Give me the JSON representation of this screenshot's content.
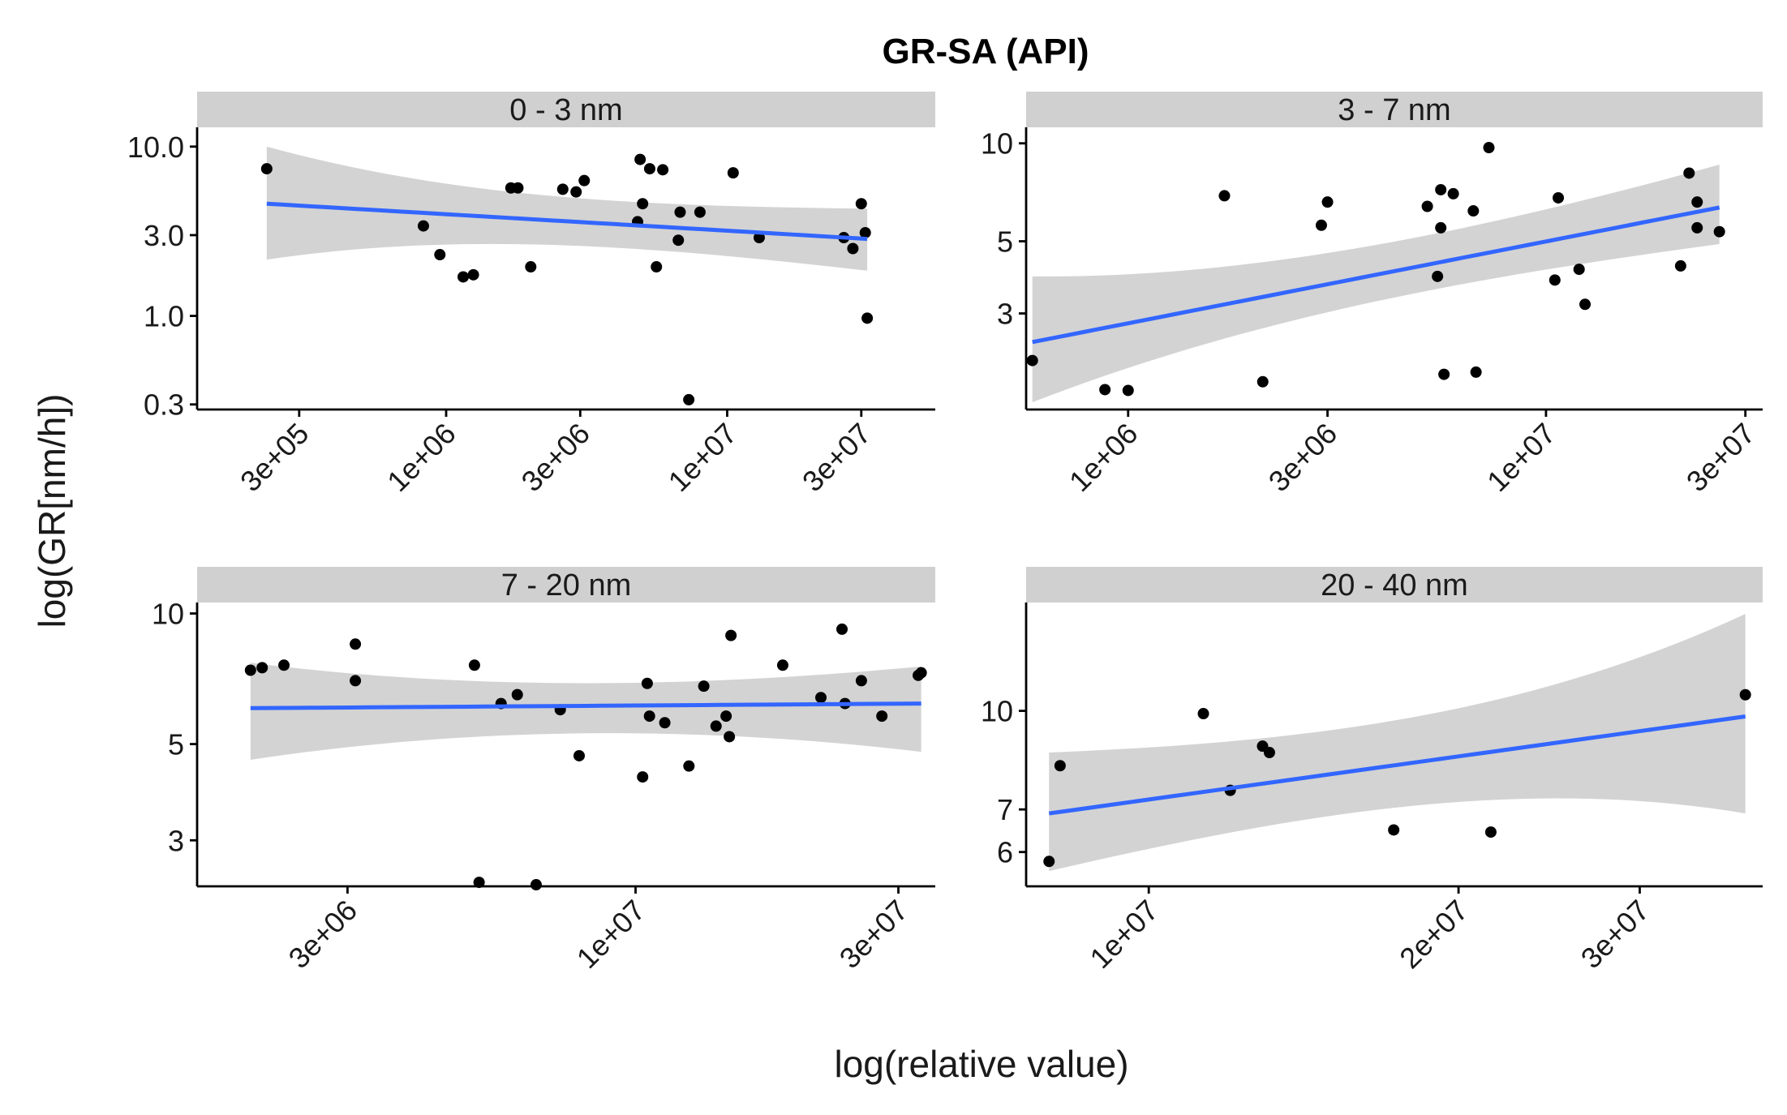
{
  "figure": {
    "title": "GR-SA (API)",
    "xlabel": "log(relative value)",
    "ylabel": "log(GR[nm/h])",
    "colors": {
      "point": "#000000",
      "fit_line": "#3366ff",
      "ribbon": "#d3d3d3",
      "strip": "#d0d0d0"
    }
  },
  "chart_data": [
    {
      "type": "scatter",
      "panel": "0 - 3 nm",
      "x_scale": "log",
      "y_scale": "log",
      "xlim": [
        130000,
        55000000
      ],
      "ylim": [
        0.28,
        13
      ],
      "xticks": [
        300000,
        1000000,
        3000000,
        10000000,
        30000000
      ],
      "xtick_labels": [
        "3e+05",
        "1e+06",
        "3e+06",
        "1e+07",
        "3e+07"
      ],
      "yticks": [
        0.3,
        1.0,
        3.0,
        10.0
      ],
      "ytick_labels": [
        "0.3",
        "1.0",
        "3.0",
        "10.0"
      ],
      "points": [
        [
          230000,
          7.4
        ],
        [
          830000,
          3.4
        ],
        [
          950000,
          2.3
        ],
        [
          1150000,
          1.7
        ],
        [
          1250000,
          1.75
        ],
        [
          1700000,
          5.7
        ],
        [
          1800000,
          5.7
        ],
        [
          2000000,
          1.95
        ],
        [
          2600000,
          5.6
        ],
        [
          2900000,
          5.4
        ],
        [
          3100000,
          6.3
        ],
        [
          4800000,
          3.6
        ],
        [
          4900000,
          8.4
        ],
        [
          5000000,
          4.6
        ],
        [
          5300000,
          7.4
        ],
        [
          5600000,
          1.95
        ],
        [
          5900000,
          7.3
        ],
        [
          6700000,
          2.8
        ],
        [
          6800000,
          4.1
        ],
        [
          7300000,
          0.32
        ],
        [
          8000000,
          4.1
        ],
        [
          10500000,
          7.0
        ],
        [
          13000000,
          2.9
        ],
        [
          26000000,
          2.9
        ],
        [
          28000000,
          2.5
        ],
        [
          30000000,
          4.6
        ],
        [
          31000000,
          3.1
        ],
        [
          31500000,
          0.97
        ]
      ],
      "fit": {
        "x": [
          230000,
          31500000
        ],
        "y": [
          4.6,
          2.85
        ],
        "ymin": [
          2.15,
          1.85
        ],
        "ymax": [
          10.0,
          4.3
        ]
      }
    },
    {
      "type": "scatter",
      "panel": "3 - 7 nm",
      "x_scale": "log",
      "y_scale": "log",
      "xlim": [
        570000,
        33000000
      ],
      "ylim": [
        1.52,
        11.2
      ],
      "xticks": [
        1000000,
        3000000,
        10000000,
        30000000
      ],
      "xtick_labels": [
        "1e+06",
        "3e+06",
        "1e+07",
        "3e+07"
      ],
      "yticks": [
        3,
        5,
        10
      ],
      "ytick_labels": [
        "3",
        "5",
        "10"
      ],
      "points": [
        [
          590000,
          2.15
        ],
        [
          880000,
          1.75
        ],
        [
          1000000,
          1.74
        ],
        [
          1700000,
          6.9
        ],
        [
          2100000,
          1.85
        ],
        [
          2900000,
          5.6
        ],
        [
          3000000,
          6.6
        ],
        [
          5200000,
          6.4
        ],
        [
          5500000,
          3.9
        ],
        [
          5600000,
          7.2
        ],
        [
          5600000,
          5.5
        ],
        [
          5700000,
          1.95
        ],
        [
          6000000,
          7.0
        ],
        [
          6700000,
          6.2
        ],
        [
          6800000,
          1.98
        ],
        [
          7300000,
          9.7
        ],
        [
          10500000,
          3.8
        ],
        [
          10700000,
          6.8
        ],
        [
          12000000,
          4.1
        ],
        [
          12400000,
          3.2
        ],
        [
          21000000,
          4.2
        ],
        [
          22000000,
          8.1
        ],
        [
          23000000,
          5.5
        ],
        [
          23000000,
          6.6
        ],
        [
          26000000,
          5.35
        ]
      ],
      "fit": {
        "x": [
          590000,
          26000000
        ],
        "y": [
          2.45,
          6.35
        ],
        "ymin": [
          1.6,
          4.9
        ],
        "ymax": [
          3.9,
          8.6
        ]
      }
    },
    {
      "type": "scatter",
      "panel": "7 - 20 nm",
      "x_scale": "log",
      "y_scale": "log",
      "xlim": [
        1600000,
        35000000
      ],
      "ylim": [
        2.35,
        10.6
      ],
      "xticks": [
        3000000,
        10000000,
        30000000
      ],
      "xtick_labels": [
        "3e+06",
        "1e+07",
        "3e+07"
      ],
      "yticks": [
        3,
        5,
        10
      ],
      "ytick_labels": [
        "3",
        "5",
        "10"
      ],
      "points": [
        [
          2000000,
          7.4
        ],
        [
          2100000,
          7.5
        ],
        [
          2300000,
          7.6
        ],
        [
          3100000,
          8.5
        ],
        [
          3100000,
          7.0
        ],
        [
          5100000,
          7.6
        ],
        [
          5200000,
          2.4
        ],
        [
          5700000,
          6.2
        ],
        [
          6100000,
          6.5
        ],
        [
          6600000,
          2.37
        ],
        [
          7300000,
          6.0
        ],
        [
          7900000,
          4.7
        ],
        [
          10300000,
          4.2
        ],
        [
          10500000,
          6.9
        ],
        [
          10600000,
          5.8
        ],
        [
          11300000,
          5.6
        ],
        [
          12500000,
          4.45
        ],
        [
          13300000,
          6.8
        ],
        [
          14000000,
          5.5
        ],
        [
          14600000,
          5.8
        ],
        [
          14800000,
          5.2
        ],
        [
          14900000,
          8.9
        ],
        [
          18500000,
          7.6
        ],
        [
          21700000,
          6.4
        ],
        [
          23700000,
          9.2
        ],
        [
          24000000,
          6.2
        ],
        [
          25700000,
          7.0
        ],
        [
          28000000,
          5.8
        ],
        [
          32600000,
          7.2
        ],
        [
          33000000,
          7.3
        ]
      ],
      "fit": {
        "x": [
          2000000,
          33000000
        ],
        "y": [
          6.05,
          6.2
        ],
        "ymin": [
          4.6,
          4.8
        ],
        "ymax": [
          7.7,
          7.55
        ]
      }
    },
    {
      "type": "scatter",
      "panel": "20 - 40 nm",
      "x_scale": "log",
      "y_scale": "log",
      "xlim": [
        7600000,
        39500000
      ],
      "ylim": [
        5.3,
        14.8
      ],
      "xticks": [
        10000000,
        20000000,
        30000000
      ],
      "xtick_labels": [
        "1e+07",
        "2e+07",
        "3e+07"
      ],
      "yticks": [
        6,
        7,
        10
      ],
      "ytick_labels": [
        "6",
        "7",
        "10"
      ],
      "points": [
        [
          8000000,
          5.8
        ],
        [
          8200000,
          8.2
        ],
        [
          11300000,
          9.9
        ],
        [
          12000000,
          7.5
        ],
        [
          12900000,
          8.8
        ],
        [
          13100000,
          8.6
        ],
        [
          17300000,
          6.5
        ],
        [
          21500000,
          6.45
        ],
        [
          38000000,
          10.6
        ]
      ],
      "fit": {
        "x": [
          8000000,
          38000000
        ],
        "y": [
          6.9,
          9.8
        ],
        "ymin": [
          5.6,
          6.9
        ],
        "ymax": [
          8.6,
          14.2
        ]
      }
    }
  ]
}
